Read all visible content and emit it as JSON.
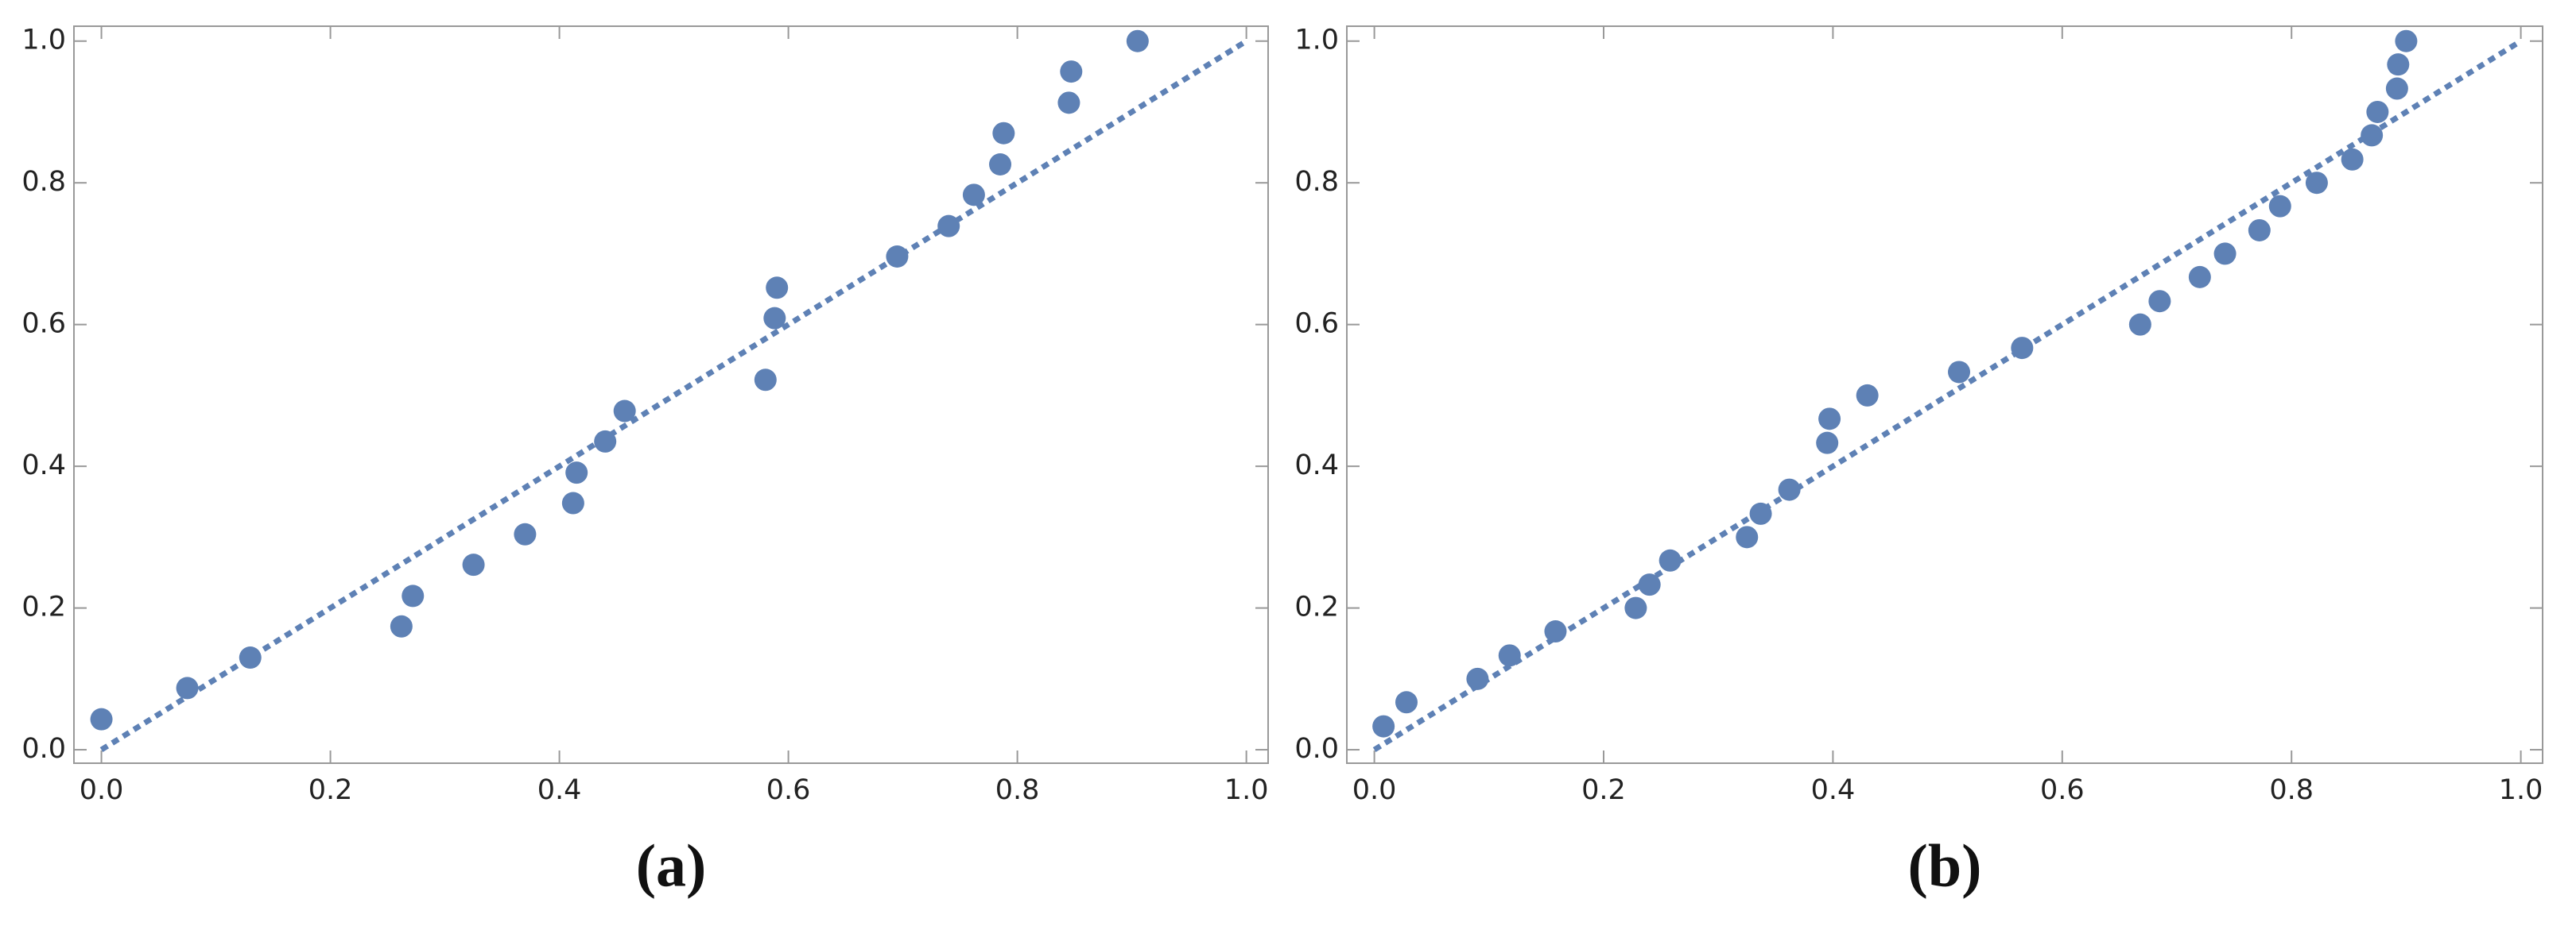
{
  "chart_data": [
    {
      "type": "scatter",
      "caption": "(a)",
      "color": "#5e81b5",
      "x": [
        0.0,
        0.075,
        0.13,
        0.262,
        0.272,
        0.325,
        0.37,
        0.412,
        0.415,
        0.44,
        0.457,
        0.58,
        0.588,
        0.59,
        0.695,
        0.74,
        0.762,
        0.785,
        0.788,
        0.845,
        0.847,
        0.905
      ],
      "y": [
        0.043,
        0.087,
        0.13,
        0.174,
        0.217,
        0.261,
        0.304,
        0.348,
        0.391,
        0.435,
        0.478,
        0.522,
        0.609,
        0.652,
        0.696,
        0.739,
        0.783,
        0.826,
        0.87,
        0.913,
        0.957,
        1.0
      ],
      "reference_line": {
        "x": [
          0,
          1
        ],
        "y": [
          0,
          1
        ]
      },
      "xlim": [
        -0.024,
        1.019
      ],
      "ylim": [
        -0.019,
        1.021
      ],
      "xticks": [
        {
          "value": 0,
          "label": "0.0"
        },
        0.2,
        0.4,
        0.6,
        0.8,
        {
          "value": 1,
          "label": "1.0"
        }
      ],
      "yticks": [
        {
          "value": 0,
          "label": "0.0"
        },
        0.2,
        0.4,
        0.6,
        0.8,
        {
          "value": 1,
          "label": "1.0"
        }
      ]
    },
    {
      "type": "scatter",
      "caption": "(b)",
      "color": "#5e81b5",
      "x": [
        0.008,
        0.028,
        0.09,
        0.118,
        0.158,
        0.228,
        0.24,
        0.258,
        0.325,
        0.337,
        0.362,
        0.395,
        0.397,
        0.43,
        0.51,
        0.565,
        0.668,
        0.685,
        0.72,
        0.742,
        0.772,
        0.79,
        0.822,
        0.853,
        0.87,
        0.875,
        0.892,
        0.893,
        0.9
      ],
      "y": [
        0.033,
        0.067,
        0.1,
        0.133,
        0.167,
        0.2,
        0.233,
        0.267,
        0.3,
        0.333,
        0.367,
        0.433,
        0.467,
        0.5,
        0.533,
        0.567,
        0.6,
        0.633,
        0.667,
        0.7,
        0.733,
        0.767,
        0.8,
        0.833,
        0.867,
        0.9,
        0.933,
        0.967,
        1.0
      ],
      "reference_line": {
        "x": [
          0,
          1
        ],
        "y": [
          0,
          1
        ]
      },
      "xlim": [
        -0.024,
        1.019
      ],
      "ylim": [
        -0.019,
        1.021
      ],
      "xticks": [
        {
          "value": 0,
          "label": "0.0"
        },
        0.2,
        0.4,
        0.6,
        0.8,
        {
          "value": 1,
          "label": "1.0"
        }
      ],
      "yticks": [
        {
          "value": 0,
          "label": "0.0"
        },
        0.2,
        0.4,
        0.6,
        0.8,
        {
          "value": 1,
          "label": "1.0"
        }
      ]
    }
  ]
}
